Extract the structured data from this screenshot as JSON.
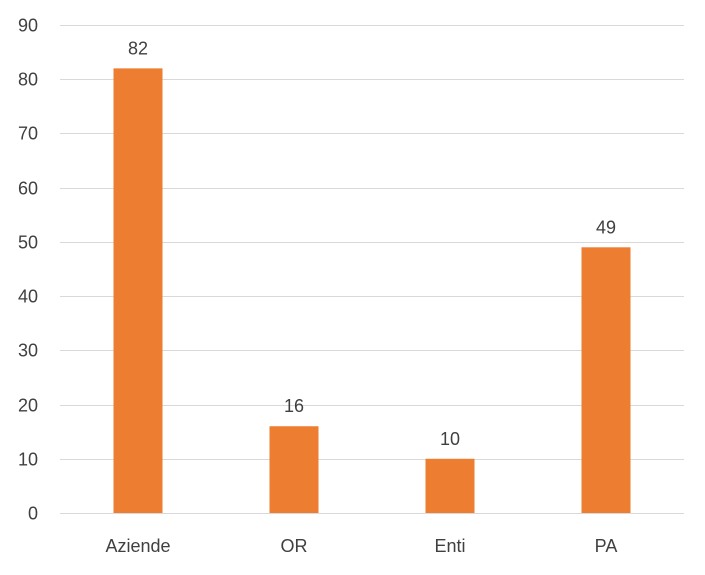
{
  "chart_data": {
    "type": "bar",
    "categories": [
      "Aziende",
      "OR",
      "Enti",
      "PA"
    ],
    "values": [
      82,
      16,
      10,
      49
    ],
    "data_labels": [
      "82",
      "16",
      "10",
      "49"
    ],
    "title": "",
    "xlabel": "",
    "ylabel": "",
    "ylim": [
      0,
      90
    ],
    "yticks": [
      0,
      10,
      20,
      30,
      40,
      50,
      60,
      70,
      80,
      90
    ],
    "ytick_labels": [
      "0",
      "10",
      "20",
      "30",
      "40",
      "50",
      "60",
      "70",
      "80",
      "90"
    ],
    "grid": true,
    "legend": "none",
    "bar_color": "#ED7D31",
    "grid_color": "#D9D9D9",
    "text_color": "#404040"
  }
}
